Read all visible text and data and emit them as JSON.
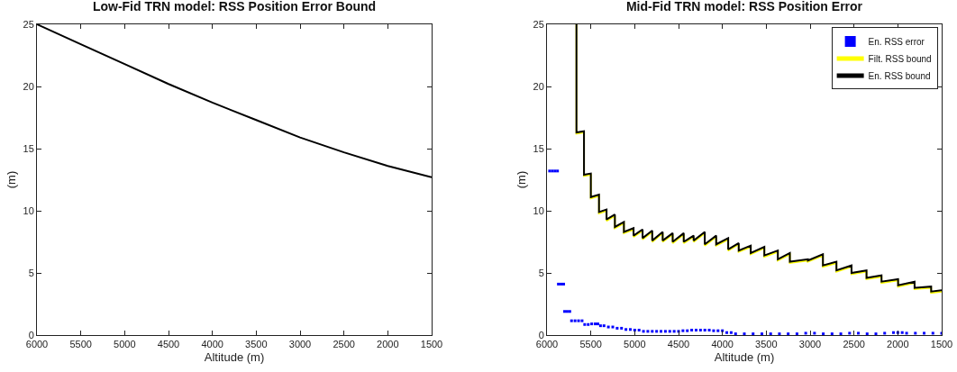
{
  "chart_data": [
    {
      "type": "line",
      "title": "Low-Fid TRN model: RSS Position Error Bound",
      "xlabel": "Altitude (m)",
      "ylabel": "(m)",
      "xlim": [
        6000,
        1500
      ],
      "ylim": [
        0,
        25
      ],
      "xticks": [
        6000,
        5500,
        5000,
        4500,
        4000,
        3500,
        3000,
        2500,
        2000,
        1500
      ],
      "yticks": [
        0,
        5,
        10,
        15,
        20,
        25
      ],
      "grid": false,
      "legend": false,
      "marker": "none",
      "line_style": "solid",
      "series": [
        {
          "color": "#000000",
          "x": [
            6000,
            5500,
            5000,
            4500,
            4000,
            3500,
            3000,
            2500,
            2000,
            1500
          ],
          "values": [
            25,
            23.4,
            21.8,
            20.2,
            18.7,
            17.3,
            15.9,
            14.7,
            13.6,
            12.7
          ]
        }
      ]
    },
    {
      "type": "line",
      "title": "Mid-Fid TRN model: RSS Position Error",
      "xlabel": "Altitude (m)",
      "ylabel": "(m)",
      "xlim": [
        6000,
        1500
      ],
      "ylim": [
        0,
        25
      ],
      "xticks": [
        6000,
        5500,
        5000,
        4500,
        4000,
        3500,
        3000,
        2500,
        2000,
        1500
      ],
      "yticks": [
        0,
        5,
        10,
        15,
        20,
        25
      ],
      "grid": false,
      "legend": "top right",
      "line_style": "solid",
      "series": [
        {
          "name": "En. RSS error",
          "type": "scatter",
          "marker": "square",
          "color": "#0000ff",
          "x": [
            5970,
            5940,
            5910,
            5880,
            5870,
            5840,
            5810,
            5800,
            5770,
            5740,
            5720,
            5680,
            5640,
            5600,
            5570,
            5530,
            5490,
            5450,
            5420,
            5390,
            5350,
            5300,
            5250,
            5200,
            5150,
            5100,
            5050,
            5000,
            4950,
            4900,
            4850,
            4800,
            4750,
            4700,
            4650,
            4600,
            4550,
            4500,
            4450,
            4400,
            4350,
            4300,
            4250,
            4200,
            4150,
            4100,
            4050,
            4000,
            3950,
            3900,
            3850,
            3750,
            3650,
            3550,
            3450,
            3350,
            3250,
            3150,
            3050,
            2950,
            2850,
            2750,
            2650,
            2550,
            2450,
            2350,
            2250,
            2150,
            2050,
            2000,
            1950,
            1900,
            1800,
            1700,
            1600,
            1500
          ],
          "values": [
            13.2,
            13.2,
            13.2,
            13.2,
            4.1,
            4.1,
            4.1,
            1.9,
            1.9,
            1.9,
            1.15,
            1.15,
            1.15,
            1.15,
            0.85,
            0.85,
            0.9,
            0.9,
            0.9,
            0.75,
            0.75,
            0.65,
            0.65,
            0.55,
            0.55,
            0.45,
            0.45,
            0.4,
            0.4,
            0.3,
            0.3,
            0.3,
            0.3,
            0.3,
            0.3,
            0.3,
            0.3,
            0.3,
            0.35,
            0.35,
            0.4,
            0.4,
            0.4,
            0.4,
            0.4,
            0.35,
            0.35,
            0.35,
            0.2,
            0.2,
            0.1,
            0.1,
            0.1,
            0.1,
            0.1,
            0.1,
            0.1,
            0.1,
            0.15,
            0.15,
            0.1,
            0.1,
            0.1,
            0.15,
            0.15,
            0.1,
            0.1,
            0.15,
            0.2,
            0.2,
            0.2,
            0.15,
            0.15,
            0.15,
            0.15,
            0.15
          ]
        },
        {
          "name": "Filt. RSS bound",
          "marker": "none",
          "color": "#ffff00",
          "x": [
            5664,
            5664,
            5578,
            5578,
            5500,
            5500,
            5407,
            5407,
            5321,
            5321,
            5226,
            5226,
            5123,
            5123,
            5013,
            5013,
            4910,
            4910,
            4800,
            4800,
            4681,
            4681,
            4567,
            4567,
            4441,
            4441,
            4328,
            4328,
            4201,
            4201,
            4071,
            4071,
            3934,
            3934,
            3814,
            3814,
            3677,
            3677,
            3522,
            3522,
            3368,
            3368,
            3231,
            3231,
            3025,
            3025,
            2854,
            2854,
            2700,
            2700,
            2528,
            2528,
            2357,
            2357,
            2186,
            2186,
            1997,
            1997,
            1809,
            1809,
            1620,
            1620,
            1500
          ],
          "values": [
            25,
            16.2,
            16.3,
            12.8,
            12.9,
            11.0,
            11.2,
            9.8,
            10.0,
            9.2,
            9.6,
            8.6,
            9.0,
            8.2,
            8.5,
            7.9,
            8.4,
            7.7,
            8.3,
            7.5,
            8.2,
            7.5,
            8.1,
            7.4,
            8.1,
            7.4,
            7.9,
            7.5,
            8.2,
            7.2,
            7.9,
            7.2,
            7.7,
            6.8,
            7.3,
            6.7,
            7.1,
            6.5,
            7.0,
            6.3,
            6.7,
            6.0,
            6.5,
            5.8,
            6.0,
            5.9,
            6.4,
            5.5,
            5.8,
            5.1,
            5.5,
            4.9,
            5.1,
            4.5,
            4.7,
            4.2,
            4.4,
            3.9,
            4.2,
            3.7,
            3.8,
            3.4,
            3.5
          ]
        },
        {
          "name": "En. RSS bound",
          "marker": "none",
          "color": "#000000",
          "x": [
            5664,
            5664,
            5578,
            5578,
            5500,
            5500,
            5407,
            5407,
            5321,
            5321,
            5226,
            5226,
            5123,
            5123,
            5013,
            5013,
            4910,
            4910,
            4800,
            4800,
            4681,
            4681,
            4567,
            4567,
            4441,
            4441,
            4328,
            4328,
            4201,
            4201,
            4071,
            4071,
            3934,
            3934,
            3814,
            3814,
            3677,
            3677,
            3522,
            3522,
            3368,
            3368,
            3231,
            3231,
            3025,
            3025,
            2854,
            2854,
            2700,
            2700,
            2528,
            2528,
            2357,
            2357,
            2186,
            2186,
            1997,
            1997,
            1809,
            1809,
            1620,
            1620,
            1500
          ],
          "values": [
            25,
            16.3,
            16.4,
            12.9,
            13.0,
            11.1,
            11.3,
            9.9,
            10.1,
            9.3,
            9.7,
            8.7,
            9.1,
            8.3,
            8.6,
            8.0,
            8.5,
            7.8,
            8.4,
            7.6,
            8.3,
            7.6,
            8.2,
            7.5,
            8.2,
            7.5,
            8.0,
            7.6,
            8.3,
            7.3,
            8.0,
            7.3,
            7.8,
            6.9,
            7.4,
            6.8,
            7.2,
            6.6,
            7.1,
            6.4,
            6.8,
            6.1,
            6.6,
            5.9,
            6.1,
            6.0,
            6.5,
            5.6,
            5.9,
            5.2,
            5.6,
            5.0,
            5.2,
            4.6,
            4.8,
            4.3,
            4.5,
            4.0,
            4.3,
            3.8,
            3.9,
            3.5,
            3.6
          ]
        }
      ]
    }
  ]
}
